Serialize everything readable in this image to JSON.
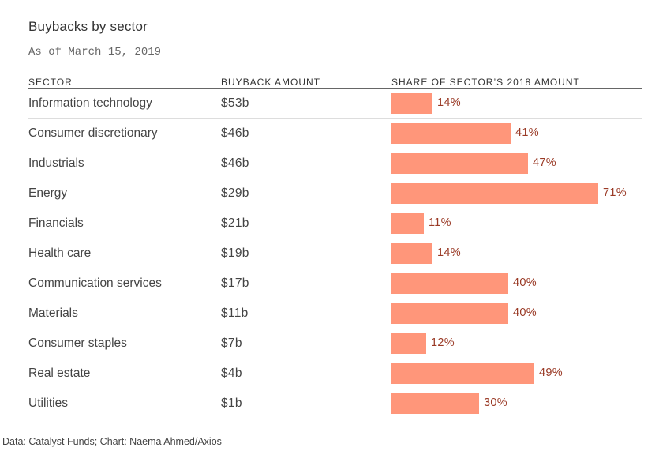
{
  "chart_data": {
    "type": "table",
    "title": "Buybacks by sector",
    "subtitle": "As of March 15, 2019",
    "columns": [
      "Sector",
      "Buyback amount",
      "Share of sector’s 2018 amount"
    ],
    "rows": [
      {
        "sector": "Information technology",
        "amount": "$53b",
        "share": 14
      },
      {
        "sector": "Consumer discretionary",
        "amount": "$46b",
        "share": 41
      },
      {
        "sector": "Industrials",
        "amount": "$46b",
        "share": 47
      },
      {
        "sector": "Energy",
        "amount": "$29b",
        "share": 71
      },
      {
        "sector": "Financials",
        "amount": "$21b",
        "share": 11
      },
      {
        "sector": "Health care",
        "amount": "$19b",
        "share": 14
      },
      {
        "sector": "Communication services",
        "amount": "$17b",
        "share": 40
      },
      {
        "sector": "Materials",
        "amount": "$11b",
        "share": 40
      },
      {
        "sector": "Consumer staples",
        "amount": "$7b",
        "share": 12
      },
      {
        "sector": "Real estate",
        "amount": "$4b",
        "share": 49
      },
      {
        "sector": "Utilities",
        "amount": "$1b",
        "share": 30
      }
    ],
    "share_unit": "%",
    "bar_color": "#ff967a",
    "source": "Data: Catalyst Funds; Chart: Naema Ahmed/Axios"
  }
}
